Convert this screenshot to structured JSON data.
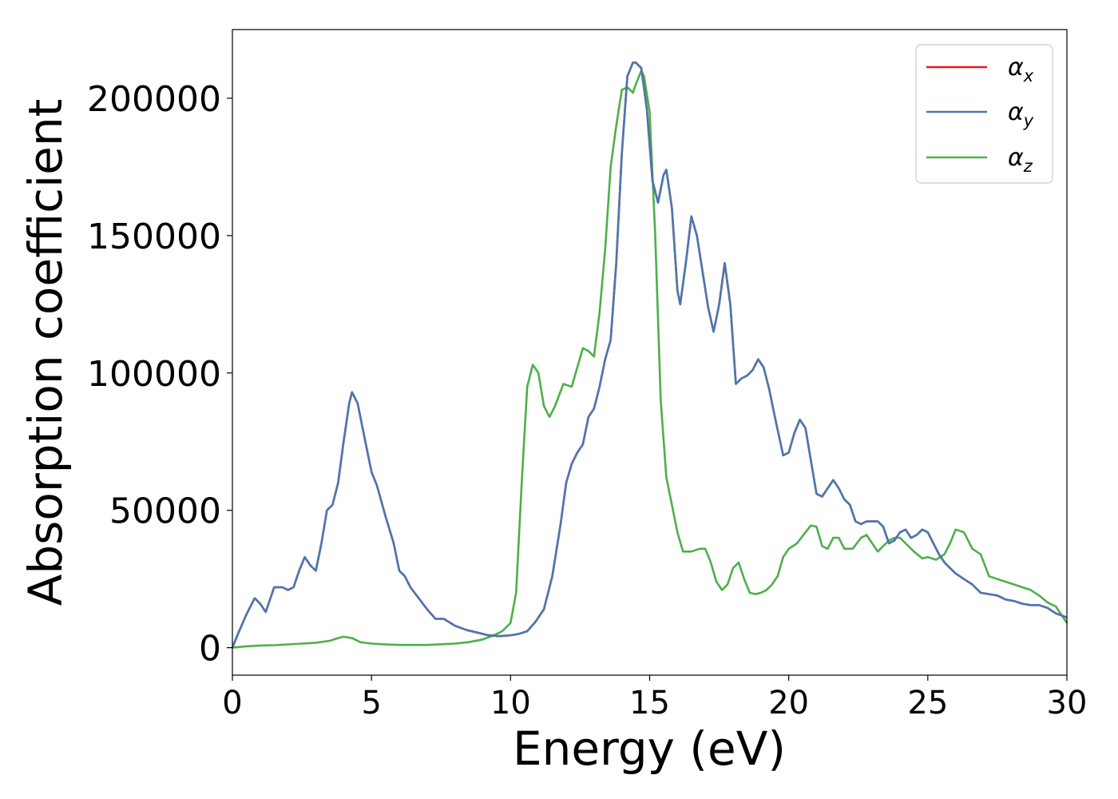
{
  "chart_data": {
    "type": "line",
    "xlabel": "Energy (eV)",
    "ylabel": "Absorption coefficient",
    "xlim": [
      0,
      30
    ],
    "ylim": [
      -10000,
      225000
    ],
    "xticks": [
      "0",
      "5",
      "10",
      "15",
      "20",
      "25",
      "30"
    ],
    "yticks": [
      "0",
      "50000",
      "100000",
      "150000",
      "200000"
    ],
    "grid": false,
    "legend_position": "top-right",
    "series": [
      {
        "name": "α",
        "sub": "x",
        "color": "#e41a1c",
        "x": [
          0,
          0.2,
          0.5,
          0.8,
          1.0,
          1.2,
          1.5,
          1.8,
          2.0,
          2.2,
          2.4,
          2.6,
          2.8,
          3.0,
          3.2,
          3.4,
          3.6,
          3.8,
          4.0,
          4.2,
          4.3,
          4.5,
          4.8,
          5.0,
          5.2,
          5.5,
          5.8,
          6.0,
          6.2,
          6.4,
          6.7,
          7.0,
          7.3,
          7.6,
          8.0,
          8.4,
          8.8,
          9.2,
          9.6,
          10.0,
          10.3,
          10.6,
          10.9,
          11.2,
          11.5,
          11.8,
          12.0,
          12.2,
          12.4,
          12.6,
          12.8,
          13.0,
          13.2,
          13.4,
          13.6,
          13.8,
          14.0,
          14.2,
          14.4,
          14.5,
          14.7,
          14.9,
          15.1,
          15.3,
          15.5,
          15.6,
          15.8,
          16.0,
          16.1,
          16.3,
          16.5,
          16.7,
          16.9,
          17.1,
          17.3,
          17.5,
          17.7,
          17.9,
          18.1,
          18.3,
          18.5,
          18.7,
          18.9,
          19.1,
          19.3,
          19.5,
          19.8,
          20.0,
          20.2,
          20.4,
          20.6,
          20.8,
          21.0,
          21.2,
          21.4,
          21.6,
          21.8,
          22.0,
          22.2,
          22.4,
          22.6,
          22.8,
          23.0,
          23.2,
          23.4,
          23.6,
          23.8,
          24.0,
          24.2,
          24.4,
          24.6,
          24.8,
          25.0,
          25.2,
          25.4,
          25.6,
          25.8,
          26.0,
          26.3,
          26.6,
          26.9,
          27.2,
          27.5,
          27.8,
          28.1,
          28.4,
          28.7,
          29.0,
          29.3,
          29.6,
          30.0
        ],
        "y": [
          0,
          5000,
          12000,
          18000,
          16000,
          13000,
          22000,
          22000,
          21000,
          22000,
          28000,
          33000,
          30000,
          28000,
          38000,
          50000,
          52000,
          60000,
          75000,
          89000,
          93000,
          89000,
          74000,
          64000,
          59000,
          48000,
          38000,
          28000,
          26000,
          22000,
          18000,
          14000,
          10500,
          10500,
          8000,
          6500,
          5500,
          4500,
          4200,
          4500,
          5000,
          6000,
          9500,
          14000,
          26000,
          45000,
          60000,
          67000,
          71000,
          74000,
          84000,
          87000,
          95000,
          105000,
          112000,
          140000,
          180000,
          208000,
          213000,
          213000,
          211000,
          196000,
          170000,
          162000,
          172000,
          174000,
          160000,
          130000,
          125000,
          140000,
          157000,
          150000,
          137000,
          124000,
          115000,
          125000,
          140000,
          125000,
          96000,
          98000,
          99000,
          101000,
          105000,
          102000,
          94000,
          84000,
          70000,
          71000,
          78000,
          83000,
          80000,
          68000,
          56000,
          55000,
          58000,
          61000,
          58000,
          54000,
          52000,
          46000,
          45000,
          46000,
          46000,
          46000,
          44000,
          38000,
          39000,
          42000,
          43000,
          40000,
          41000,
          43000,
          42000,
          38000,
          34000,
          31000,
          29000,
          27000,
          25000,
          23000,
          20000,
          19500,
          19000,
          17500,
          17000,
          16000,
          15500,
          15500,
          14500,
          12500,
          11000
        ]
      },
      {
        "name": "α",
        "sub": "y",
        "color": "#4a78b0",
        "x": [
          0,
          0.2,
          0.5,
          0.8,
          1.0,
          1.2,
          1.5,
          1.8,
          2.0,
          2.2,
          2.4,
          2.6,
          2.8,
          3.0,
          3.2,
          3.4,
          3.6,
          3.8,
          4.0,
          4.2,
          4.3,
          4.5,
          4.8,
          5.0,
          5.2,
          5.5,
          5.8,
          6.0,
          6.2,
          6.4,
          6.7,
          7.0,
          7.3,
          7.6,
          8.0,
          8.4,
          8.8,
          9.2,
          9.6,
          10.0,
          10.3,
          10.6,
          10.9,
          11.2,
          11.5,
          11.8,
          12.0,
          12.2,
          12.4,
          12.6,
          12.8,
          13.0,
          13.2,
          13.4,
          13.6,
          13.8,
          14.0,
          14.2,
          14.4,
          14.5,
          14.7,
          14.9,
          15.1,
          15.3,
          15.5,
          15.6,
          15.8,
          16.0,
          16.1,
          16.3,
          16.5,
          16.7,
          16.9,
          17.1,
          17.3,
          17.5,
          17.7,
          17.9,
          18.1,
          18.3,
          18.5,
          18.7,
          18.9,
          19.1,
          19.3,
          19.5,
          19.8,
          20.0,
          20.2,
          20.4,
          20.6,
          20.8,
          21.0,
          21.2,
          21.4,
          21.6,
          21.8,
          22.0,
          22.2,
          22.4,
          22.6,
          22.8,
          23.0,
          23.2,
          23.4,
          23.6,
          23.8,
          24.0,
          24.2,
          24.4,
          24.6,
          24.8,
          25.0,
          25.2,
          25.4,
          25.6,
          25.8,
          26.0,
          26.3,
          26.6,
          26.9,
          27.2,
          27.5,
          27.8,
          28.1,
          28.4,
          28.7,
          29.0,
          29.3,
          29.6,
          30.0
        ],
        "y": [
          0,
          5000,
          12000,
          18000,
          16000,
          13000,
          22000,
          22000,
          21000,
          22000,
          28000,
          33000,
          30000,
          28000,
          38000,
          50000,
          52000,
          60000,
          75000,
          89000,
          93000,
          89000,
          74000,
          64000,
          59000,
          48000,
          38000,
          28000,
          26000,
          22000,
          18000,
          14000,
          10500,
          10500,
          8000,
          6500,
          5500,
          4500,
          4200,
          4500,
          5000,
          6000,
          9500,
          14000,
          26000,
          45000,
          60000,
          67000,
          71000,
          74000,
          84000,
          87000,
          95000,
          105000,
          112000,
          140000,
          180000,
          208000,
          213000,
          213000,
          211000,
          196000,
          170000,
          162000,
          172000,
          174000,
          160000,
          130000,
          125000,
          140000,
          157000,
          150000,
          137000,
          124000,
          115000,
          125000,
          140000,
          125000,
          96000,
          98000,
          99000,
          101000,
          105000,
          102000,
          94000,
          84000,
          70000,
          71000,
          78000,
          83000,
          80000,
          68000,
          56000,
          55000,
          58000,
          61000,
          58000,
          54000,
          52000,
          46000,
          45000,
          46000,
          46000,
          46000,
          44000,
          38000,
          39000,
          42000,
          43000,
          40000,
          41000,
          43000,
          42000,
          38000,
          34000,
          31000,
          29000,
          27000,
          25000,
          23000,
          20000,
          19500,
          19000,
          17500,
          17000,
          16000,
          15500,
          15500,
          14500,
          12500,
          11000
        ]
      },
      {
        "name": "α",
        "sub": "z",
        "color": "#4daf4a",
        "x": [
          0,
          0.5,
          1.0,
          1.5,
          2.0,
          2.5,
          3.0,
          3.5,
          3.8,
          4.0,
          4.3,
          4.6,
          5.0,
          5.5,
          6.0,
          7.0,
          8.0,
          8.5,
          9.0,
          9.4,
          9.7,
          10.0,
          10.2,
          10.4,
          10.6,
          10.8,
          11.0,
          11.2,
          11.4,
          11.6,
          11.9,
          12.2,
          12.4,
          12.6,
          12.8,
          13.0,
          13.2,
          13.4,
          13.6,
          13.8,
          14.0,
          14.2,
          14.4,
          14.5,
          14.7,
          14.8,
          15.0,
          15.2,
          15.4,
          15.6,
          15.8,
          16.0,
          16.2,
          16.5,
          16.8,
          17.0,
          17.2,
          17.4,
          17.6,
          17.8,
          18.0,
          18.2,
          18.4,
          18.6,
          18.8,
          19.0,
          19.2,
          19.4,
          19.6,
          19.8,
          20.0,
          20.3,
          20.6,
          20.8,
          21.0,
          21.2,
          21.4,
          21.6,
          21.8,
          22.0,
          22.3,
          22.6,
          22.8,
          23.0,
          23.2,
          23.4,
          23.6,
          23.8,
          24.0,
          24.2,
          24.5,
          24.8,
          25.0,
          25.3,
          25.6,
          25.8,
          26.0,
          26.3,
          26.6,
          26.9,
          27.2,
          27.5,
          27.8,
          28.1,
          28.4,
          28.7,
          29.0,
          29.3,
          29.6,
          30.0
        ],
        "y": [
          0,
          500,
          800,
          900,
          1200,
          1500,
          1800,
          2500,
          3500,
          4000,
          3500,
          2000,
          1500,
          1200,
          1000,
          1000,
          1500,
          2000,
          3000,
          4500,
          6000,
          9000,
          20000,
          60000,
          95000,
          103000,
          100000,
          88000,
          84000,
          88000,
          96000,
          95000,
          102000,
          109000,
          108000,
          106000,
          122000,
          145000,
          175000,
          190000,
          203000,
          204000,
          202000,
          205000,
          210000,
          208000,
          195000,
          150000,
          90000,
          62000,
          52000,
          42000,
          35000,
          35000,
          36000,
          36000,
          31000,
          24000,
          21000,
          23000,
          29000,
          31000,
          25000,
          20000,
          19500,
          20000,
          21000,
          23000,
          26000,
          33000,
          36000,
          38000,
          42000,
          44500,
          44000,
          37000,
          36000,
          40000,
          40000,
          36000,
          36000,
          40000,
          41000,
          38000,
          35000,
          37000,
          39000,
          40000,
          40000,
          38000,
          35000,
          32500,
          33000,
          32000,
          34000,
          38000,
          43000,
          42000,
          36000,
          34000,
          26000,
          25000,
          24000,
          23000,
          22000,
          21000,
          19000,
          16500,
          15000,
          9000
        ]
      }
    ]
  }
}
